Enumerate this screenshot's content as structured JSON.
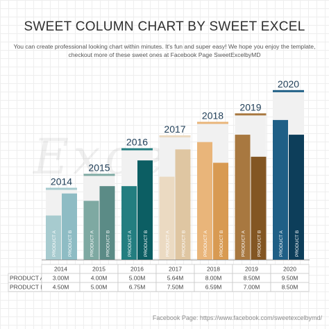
{
  "title": "SWEET COLUMN CHART BY SWEET EXCEL",
  "subtitle_line1": "You can create professional looking chart within minutes. It's fun and super easy! We hope you enjoy the template,",
  "subtitle_line2": "checkout more of these sweet ones at Facebook Page SweetExcelbyMD",
  "watermark": "Excel",
  "footer": "Facebook Page: https://www.facebook.com/sweetexcelbymd/",
  "chart_data": {
    "type": "bar",
    "categories": [
      "2014",
      "2015",
      "2016",
      "2017",
      "2018",
      "2019",
      "2020"
    ],
    "series": [
      {
        "name": "PRODUCT A",
        "values": [
          3.0,
          4.0,
          5.0,
          5.64,
          8.0,
          8.5,
          9.5
        ]
      },
      {
        "name": "PRODUCT B",
        "values": [
          4.5,
          5.0,
          6.75,
          7.5,
          6.59,
          7.0,
          8.5
        ]
      }
    ],
    "table": {
      "PRODUCT A": [
        "3.00M",
        "4.00M",
        "5.00M",
        "5.64M",
        "8.00M",
        "8.50M",
        "9.50M"
      ],
      "PRODUCT B": [
        "4.50M",
        "5.00M",
        "6.75M",
        "7.50M",
        "6.59M",
        "7.00M",
        "8.50M"
      ]
    },
    "group_totals": [
      7.5,
      9.0,
      11.75,
      13.14,
      14.59,
      15.5,
      18.0
    ],
    "ylim": [
      0,
      10
    ],
    "bar_label_a": "PRODUCT A",
    "bar_label_b": "PRODUCT B",
    "colors_a": [
      "#a7cbcf",
      "#7ea9a2",
      "#237e80",
      "#ebdac2",
      "#e9b57a",
      "#a87840",
      "#1f5f86"
    ],
    "colors_b": [
      "#8ebcc4",
      "#5b8b86",
      "#0c5e63",
      "#dfc6a2",
      "#d89a52",
      "#835623",
      "#0d3e5a"
    ],
    "cap_colors": [
      "#a7cbcf",
      "#7ea9a2",
      "#237e80",
      "#ebdac2",
      "#e9b57a",
      "#a87840",
      "#1f5f86"
    ]
  }
}
